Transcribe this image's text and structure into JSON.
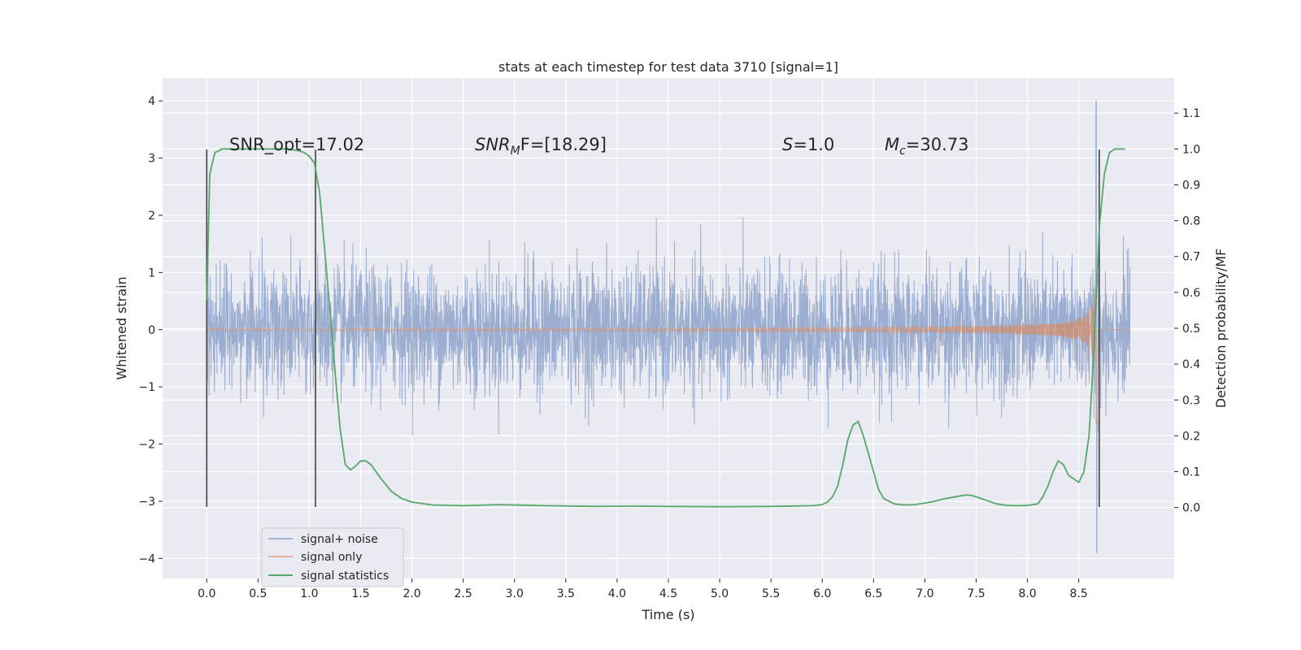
{
  "chart_data": {
    "type": "line",
    "title": "stats at each timestep for test data 3710 [signal=1]",
    "xlabel": "Time (s)",
    "ylabel": "Whitened strain",
    "y2label": "Detection probability/MF",
    "xlim": [
      -0.43,
      9.43
    ],
    "ylim": [
      -4.35,
      4.4
    ],
    "y2lim": [
      -0.198,
      1.198
    ],
    "xticks": [
      "0.0",
      "0.5",
      "1.0",
      "1.5",
      "2.0",
      "2.5",
      "3.0",
      "3.5",
      "4.0",
      "4.5",
      "5.0",
      "5.5",
      "6.0",
      "6.5",
      "7.0",
      "7.5",
      "8.0",
      "8.5"
    ],
    "yticks": [
      "4",
      "3",
      "2",
      "1",
      "0",
      "−1",
      "−2",
      "−3",
      "−4"
    ],
    "y2ticks": [
      "1.1",
      "1.0",
      "0.9",
      "0.8",
      "0.7",
      "0.6",
      "0.5",
      "0.4",
      "0.3",
      "0.2",
      "0.1",
      "0.0"
    ],
    "grid": true,
    "legend_position": "lower-left",
    "colors": {
      "noise": "#4c72b0",
      "signal": "#dd8452",
      "stats": "#55a868",
      "vlines": "#555555",
      "background": "#eaeaf2"
    },
    "annotations": {
      "snr_opt": "SNR_opt=17.02",
      "snr_mf_main": "SNR",
      "snr_mf_sub": "M",
      "snr_mf_rest": "F=[18.29]",
      "s_main": "S",
      "s_rest": "=1.0",
      "mc_main": "M",
      "mc_sub": "c",
      "mc_rest": "=30.73"
    },
    "series": [
      {
        "name": "signal+ noise",
        "description": "whitened strain with noise, roughly ±1.3 typical amplitude, peaks to about ±3.1, extremes 4.0 and -3.9 near t=8.67",
        "x_range": [
          0.0,
          9.0
        ],
        "typical_amplitude": 1.3,
        "max": 4.0,
        "min": -3.9
      },
      {
        "name": "signal only",
        "description": "chirp growing in amplitude toward merger",
        "x_range": [
          0.0,
          9.0
        ],
        "merger_time": 8.67,
        "max": 3.3,
        "min": -3.1
      },
      {
        "name": "signal statistics",
        "axis": "right",
        "x": [
          0.0,
          0.03,
          0.08,
          0.15,
          0.25,
          0.4,
          0.6,
          0.8,
          0.9,
          0.95,
          1.0,
          1.05,
          1.1,
          1.15,
          1.2,
          1.25,
          1.3,
          1.35,
          1.4,
          1.45,
          1.5,
          1.55,
          1.6,
          1.7,
          1.8,
          1.9,
          2.0,
          2.2,
          2.5,
          2.85,
          3.3,
          3.8,
          4.1,
          4.5,
          5.0,
          5.5,
          5.9,
          6.0,
          6.05,
          6.1,
          6.15,
          6.2,
          6.25,
          6.3,
          6.35,
          6.4,
          6.45,
          6.5,
          6.55,
          6.6,
          6.7,
          6.8,
          6.9,
          7.0,
          7.1,
          7.2,
          7.3,
          7.4,
          7.45,
          7.5,
          7.6,
          7.7,
          7.8,
          7.9,
          8.0,
          8.1,
          8.15,
          8.2,
          8.25,
          8.3,
          8.35,
          8.4,
          8.45,
          8.5,
          8.55,
          8.6,
          8.65,
          8.7,
          8.75,
          8.8,
          8.85,
          8.9,
          8.95
        ],
        "values": [
          0.58,
          0.93,
          0.99,
          1.0,
          1.0,
          1.0,
          1.0,
          1.0,
          0.995,
          0.99,
          0.98,
          0.96,
          0.88,
          0.72,
          0.55,
          0.38,
          0.22,
          0.12,
          0.105,
          0.115,
          0.13,
          0.13,
          0.12,
          0.08,
          0.045,
          0.025,
          0.015,
          0.007,
          0.005,
          0.008,
          0.005,
          0.003,
          0.004,
          0.003,
          0.002,
          0.003,
          0.005,
          0.008,
          0.015,
          0.03,
          0.06,
          0.12,
          0.19,
          0.23,
          0.24,
          0.2,
          0.15,
          0.1,
          0.05,
          0.025,
          0.01,
          0.007,
          0.008,
          0.012,
          0.018,
          0.025,
          0.03,
          0.035,
          0.034,
          0.03,
          0.02,
          0.01,
          0.006,
          0.005,
          0.006,
          0.01,
          0.03,
          0.06,
          0.1,
          0.13,
          0.12,
          0.09,
          0.08,
          0.07,
          0.1,
          0.2,
          0.45,
          0.78,
          0.93,
          0.99,
          1.0,
          1.0,
          1.0
        ]
      }
    ],
    "vertical_lines": [
      {
        "x": 0.0,
        "y_from": -3.1,
        "y_to": 3.15
      },
      {
        "x": 1.06,
        "y_from": -3.1,
        "y_to": 3.15
      },
      {
        "x": 8.7,
        "y_from": -3.1,
        "y_to": 3.15
      }
    ]
  }
}
